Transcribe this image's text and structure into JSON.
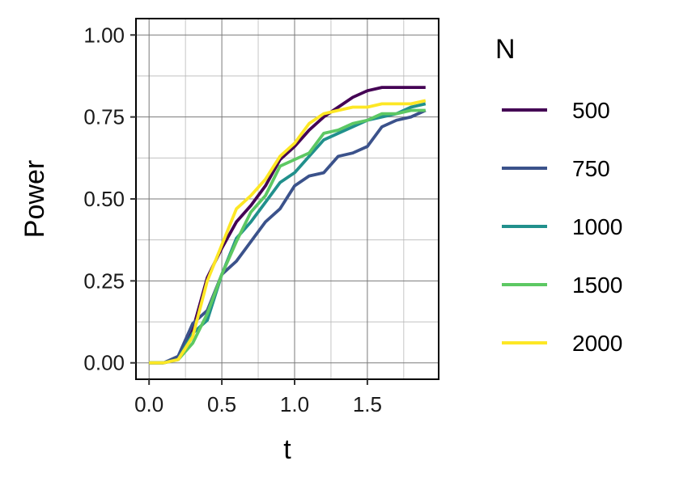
{
  "chart_data": {
    "type": "line",
    "xlabel": "t",
    "ylabel": "Power",
    "xlim": [
      -0.09,
      1.99
    ],
    "ylim": [
      -0.05,
      1.05
    ],
    "x_ticks": [
      0.0,
      0.5,
      1.0,
      1.5
    ],
    "x_tick_labels": [
      "0.0",
      "0.5",
      "1.0",
      "1.5"
    ],
    "y_ticks": [
      0.0,
      0.25,
      0.5,
      0.75,
      1.0
    ],
    "y_tick_labels": [
      "0.00",
      "0.25",
      "0.50",
      "0.75",
      "1.00"
    ],
    "grid": true,
    "legend": {
      "title": "N",
      "position": "right"
    },
    "x": [
      0.0,
      0.1,
      0.2,
      0.3,
      0.4,
      0.5,
      0.6,
      0.7,
      0.8,
      0.9,
      1.0,
      1.1,
      1.2,
      1.3,
      1.4,
      1.5,
      1.6,
      1.7,
      1.8,
      1.9
    ],
    "series": [
      {
        "name": "500",
        "color": "#440154",
        "values": [
          0.0,
          0.0,
          0.01,
          0.1,
          0.26,
          0.35,
          0.43,
          0.48,
          0.54,
          0.62,
          0.66,
          0.71,
          0.75,
          0.78,
          0.81,
          0.83,
          0.84,
          0.84,
          0.84,
          0.84
        ]
      },
      {
        "name": "750",
        "color": "#3B528B",
        "values": [
          0.0,
          0.0,
          0.02,
          0.12,
          0.16,
          0.27,
          0.31,
          0.37,
          0.43,
          0.47,
          0.54,
          0.57,
          0.58,
          0.63,
          0.64,
          0.66,
          0.72,
          0.74,
          0.75,
          0.77
        ]
      },
      {
        "name": "1000",
        "color": "#21908C",
        "values": [
          0.0,
          0.0,
          0.01,
          0.09,
          0.13,
          0.27,
          0.38,
          0.43,
          0.49,
          0.55,
          0.58,
          0.63,
          0.68,
          0.7,
          0.72,
          0.74,
          0.75,
          0.76,
          0.78,
          0.79
        ]
      },
      {
        "name": "1500",
        "color": "#5DC863",
        "values": [
          0.0,
          0.0,
          0.01,
          0.06,
          0.15,
          0.27,
          0.37,
          0.46,
          0.51,
          0.6,
          0.62,
          0.64,
          0.7,
          0.71,
          0.73,
          0.74,
          0.76,
          0.76,
          0.77,
          0.77
        ]
      },
      {
        "name": "2000",
        "color": "#FDE725",
        "values": [
          0.0,
          0.0,
          0.01,
          0.08,
          0.25,
          0.36,
          0.47,
          0.51,
          0.56,
          0.63,
          0.67,
          0.73,
          0.76,
          0.77,
          0.78,
          0.78,
          0.79,
          0.79,
          0.79,
          0.8
        ]
      }
    ]
  }
}
